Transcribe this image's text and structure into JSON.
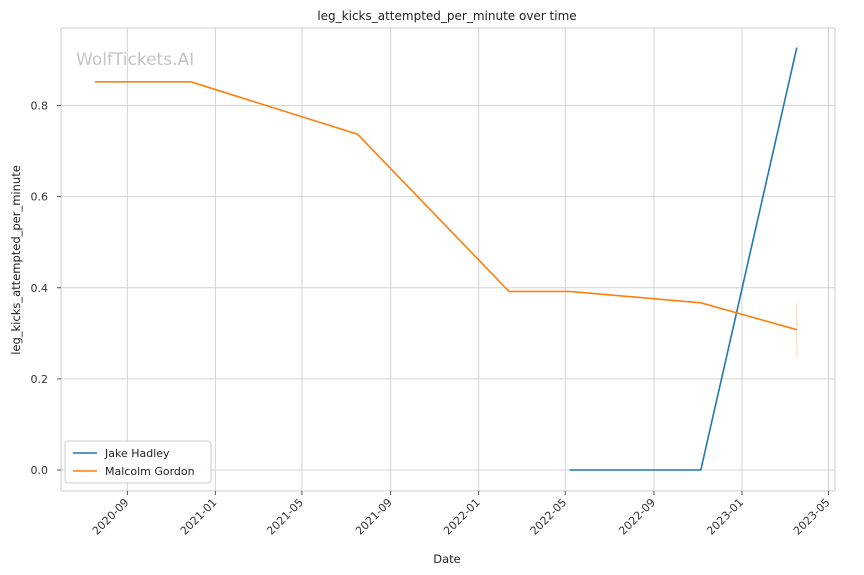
{
  "chart_data": {
    "type": "line",
    "title": "leg_kicks_attempted_per_minute over time",
    "xlabel": "Date",
    "ylabel": "leg_kicks_attempted_per_minute",
    "watermark": "WolfTickets.AI",
    "x_axis_type": "date",
    "xlim": [
      "2020-06-01",
      "2023-05-10"
    ],
    "ylim": [
      -0.046,
      0.97
    ],
    "x_ticks": [
      "2020-09-01",
      "2021-01-01",
      "2021-05-01",
      "2021-09-01",
      "2022-01-01",
      "2022-05-01",
      "2022-09-01",
      "2023-01-01",
      "2023-05-01"
    ],
    "x_tick_labels": [
      "2020-09",
      "2021-01",
      "2021-05",
      "2021-09",
      "2022-01",
      "2022-05",
      "2022-09",
      "2023-01",
      "2023-05"
    ],
    "y_ticks": [
      0.0,
      0.2,
      0.4,
      0.6,
      0.8
    ],
    "y_tick_labels": [
      "0.0",
      "0.2",
      "0.4",
      "0.6",
      "0.8"
    ],
    "grid": true,
    "legend_position": "lower-left",
    "series": [
      {
        "name": "Jake Hadley",
        "color": "#1f77b4",
        "points": [
          {
            "x": "2022-05-07",
            "y": 0.0
          },
          {
            "x": "2022-11-05",
            "y": 0.0
          },
          {
            "x": "2023-03-18",
            "y": 0.927
          }
        ]
      },
      {
        "name": "Malcolm Gordon",
        "color": "#ff7f0e",
        "points": [
          {
            "x": "2020-07-18",
            "y": 0.852
          },
          {
            "x": "2020-11-28",
            "y": 0.852
          },
          {
            "x": "2021-07-17",
            "y": 0.737
          },
          {
            "x": "2022-02-12",
            "y": 0.392
          },
          {
            "x": "2022-05-07",
            "y": 0.392
          },
          {
            "x": "2022-11-05",
            "y": 0.367
          },
          {
            "x": "2023-03-18",
            "y": 0.308
          }
        ],
        "error_bar": {
          "x": "2023-03-18",
          "low": 0.248,
          "high": 0.368
        }
      }
    ]
  }
}
